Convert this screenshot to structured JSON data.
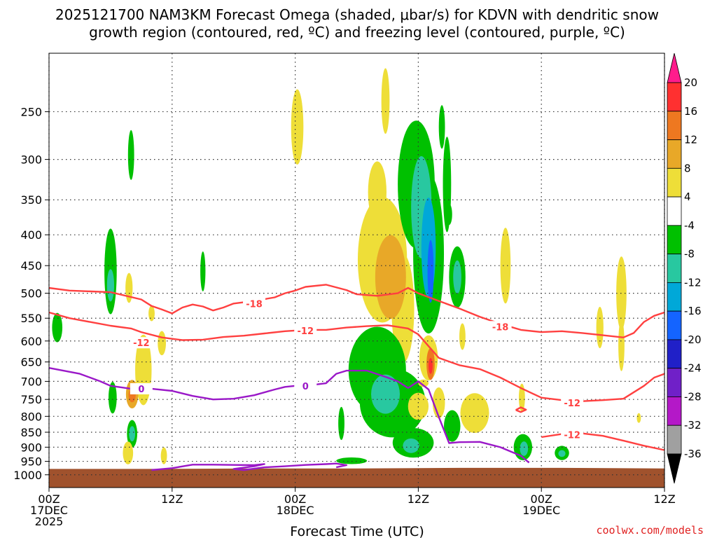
{
  "chart_data": {
    "type": "time-height cross section",
    "title_line1": "2025121700 NAM3KM Forecast Omega (shaded, μbar/s) for KDVN with dendritic snow",
    "title_line2": "growth region (contoured, red, ºC) and freezing level (contoured, purple, ºC)",
    "xlabel": "Forecast Time (UTC)",
    "ylabel": "",
    "credit": "coolwx.com/models",
    "xlim_hours": [
      0,
      60
    ],
    "ylim_hpa": [
      1050,
      200
    ],
    "x_ticks": [
      {
        "hour": 0,
        "line1": "00Z",
        "line2": "17DEC",
        "line3": "2025"
      },
      {
        "hour": 12,
        "line1": "12Z",
        "line2": "",
        "line3": ""
      },
      {
        "hour": 24,
        "line1": "00Z",
        "line2": "18DEC",
        "line3": ""
      },
      {
        "hour": 36,
        "line1": "12Z",
        "line2": "",
        "line3": ""
      },
      {
        "hour": 48,
        "line1": "00Z",
        "line2": "19DEC",
        "line3": ""
      },
      {
        "hour": 60,
        "line1": "12Z",
        "line2": "",
        "line3": ""
      }
    ],
    "y_ticks": [
      250,
      300,
      350,
      400,
      450,
      500,
      550,
      600,
      650,
      700,
      750,
      800,
      850,
      900,
      950,
      1000
    ],
    "colorbar": {
      "labels": [
        "20",
        "16",
        "12",
        "8",
        "4",
        "-4",
        "-8",
        "-12",
        "-16",
        "-20",
        "-24",
        "-28",
        "-32",
        "-36"
      ],
      "colors": [
        "#ff1c8c",
        "#ff3030",
        "#ee7820",
        "#e8a828",
        "#eede38",
        "#ffffff",
        "#00c000",
        "#28c8a0",
        "#00a8d8",
        "#1464ff",
        "#2020c8",
        "#7020c8",
        "#b418c8",
        "#a0a0a0",
        "#000000"
      ]
    },
    "surface": {
      "color": "#a0522d",
      "pressure_hpa": [
        978,
        978,
        976,
        976,
        974,
        974,
        976
      ]
    },
    "contours": [
      {
        "name": "dgz-minus18",
        "label": "-18",
        "color": "#ff4040",
        "points": [
          [
            0,
            490
          ],
          [
            2,
            495
          ],
          [
            6,
            498
          ],
          [
            9,
            512
          ],
          [
            10,
            525
          ],
          [
            11,
            532
          ],
          [
            12,
            540
          ],
          [
            13,
            528
          ],
          [
            14,
            522
          ],
          [
            15,
            526
          ],
          [
            16,
            534
          ],
          [
            17,
            528
          ],
          [
            18,
            520
          ],
          [
            20,
            515
          ],
          [
            22,
            508
          ],
          [
            23,
            500
          ],
          [
            24,
            495
          ],
          [
            25,
            488
          ],
          [
            27,
            484
          ],
          [
            29,
            494
          ],
          [
            30,
            502
          ],
          [
            32,
            505
          ],
          [
            34,
            500
          ],
          [
            35,
            490
          ],
          [
            36,
            500
          ],
          [
            38,
            515
          ],
          [
            40,
            530
          ],
          [
            42,
            547
          ],
          [
            44,
            562
          ],
          [
            46,
            575
          ],
          [
            48,
            580
          ],
          [
            50,
            578
          ],
          [
            52,
            582
          ],
          [
            54,
            587
          ],
          [
            56,
            592
          ],
          [
            57,
            582
          ],
          [
            58,
            558
          ],
          [
            59,
            545
          ],
          [
            60,
            538
          ]
        ],
        "label_at": [
          [
            20,
            520
          ],
          [
            44,
            568
          ]
        ]
      },
      {
        "name": "dgz-minus12",
        "label": "-12",
        "color": "#ff4040",
        "points": [
          [
            0,
            538
          ],
          [
            2,
            550
          ],
          [
            4,
            558
          ],
          [
            6,
            566
          ],
          [
            8,
            572
          ],
          [
            9,
            580
          ],
          [
            11,
            592
          ],
          [
            13,
            598
          ],
          [
            15,
            597
          ],
          [
            17,
            591
          ],
          [
            19,
            588
          ],
          [
            21,
            583
          ],
          [
            23,
            578
          ],
          [
            25,
            575
          ],
          [
            27,
            575
          ],
          [
            29,
            570
          ],
          [
            31,
            567
          ],
          [
            33,
            565
          ],
          [
            35,
            572
          ],
          [
            36,
            585
          ],
          [
            37,
            612
          ],
          [
            38,
            640
          ],
          [
            40,
            658
          ],
          [
            42,
            668
          ],
          [
            44,
            690
          ],
          [
            46,
            718
          ],
          [
            48,
            745
          ],
          [
            50,
            752
          ],
          [
            52,
            755
          ],
          [
            54,
            752
          ],
          [
            56,
            748
          ],
          [
            58,
            712
          ],
          [
            59,
            690
          ],
          [
            60,
            680
          ]
        ],
        "label_at": [
          [
            9,
            604
          ],
          [
            25,
            577
          ],
          [
            51,
            760
          ]
        ]
      },
      {
        "name": "dgz-minus12-lower",
        "label": "-12",
        "color": "#ff4040",
        "points": [
          [
            48,
            866
          ],
          [
            50,
            856
          ],
          [
            52,
            854
          ],
          [
            54,
            862
          ],
          [
            56,
            878
          ],
          [
            58,
            895
          ],
          [
            60,
            910
          ]
        ],
        "label_at": [
          [
            51,
            858
          ]
        ]
      },
      {
        "name": "dgz-small",
        "label": "",
        "color": "#ff4040",
        "points": [
          [
            45.5,
            781
          ],
          [
            46,
            773
          ],
          [
            46.5,
            780
          ],
          [
            46,
            787
          ],
          [
            45.5,
            781
          ]
        ],
        "label_at": []
      },
      {
        "name": "freezing-level",
        "label": "0",
        "color": "#9a18c8",
        "points": [
          [
            0,
            665
          ],
          [
            3,
            680
          ],
          [
            5,
            700
          ],
          [
            6,
            712
          ],
          [
            8,
            720
          ],
          [
            9,
            722
          ],
          [
            10,
            720
          ],
          [
            12,
            726
          ],
          [
            14,
            740
          ],
          [
            16,
            750
          ],
          [
            18,
            748
          ],
          [
            20,
            738
          ],
          [
            22,
            722
          ],
          [
            23,
            715
          ],
          [
            24,
            712
          ],
          [
            25,
            712
          ],
          [
            27,
            705
          ],
          [
            28,
            680
          ],
          [
            29,
            672
          ],
          [
            31,
            672
          ],
          [
            33,
            690
          ],
          [
            34,
            700
          ],
          [
            35,
            718
          ],
          [
            36,
            700
          ],
          [
            37,
            722
          ],
          [
            38,
            802
          ],
          [
            39,
            886
          ],
          [
            40,
            883
          ],
          [
            42,
            882
          ],
          [
            44,
            900
          ],
          [
            46,
            930
          ],
          [
            46.8,
            955
          ]
        ],
        "label_at": [
          [
            9,
            720
          ],
          [
            25,
            712
          ]
        ]
      },
      {
        "name": "freezing-level-low",
        "label": "",
        "color": "#9a18c8",
        "points": [
          [
            10,
            982
          ],
          [
            12,
            975
          ],
          [
            14,
            962
          ],
          [
            16,
            962
          ],
          [
            18,
            963
          ],
          [
            20,
            964
          ],
          [
            21,
            960
          ],
          [
            20,
            968
          ],
          [
            18,
            978
          ],
          [
            19,
            982
          ],
          [
            21,
            972
          ],
          [
            23,
            968
          ],
          [
            25,
            963
          ],
          [
            27,
            960
          ],
          [
            28,
            958
          ],
          [
            29,
            964
          ],
          [
            28,
            972
          ]
        ],
        "label_at": []
      }
    ],
    "shaded_regions": [
      {
        "color": "#eede38",
        "cx": 24.2,
        "cy": 265,
        "rx": 0.6,
        "ry": 38
      },
      {
        "color": "#00c000",
        "cx": 8.0,
        "cy": 295,
        "rx": 0.3,
        "ry": 28
      },
      {
        "color": "#00c000",
        "cx": 0.8,
        "cy": 570,
        "rx": 0.5,
        "ry": 32
      },
      {
        "color": "#00c000",
        "cx": 6.0,
        "cy": 460,
        "rx": 0.6,
        "ry": 75
      },
      {
        "color": "#28c8a0",
        "cx": 6.0,
        "cy": 485,
        "rx": 0.35,
        "ry": 30
      },
      {
        "color": "#eede38",
        "cx": 7.8,
        "cy": 490,
        "rx": 0.35,
        "ry": 28
      },
      {
        "color": "#00c000",
        "cx": 6.2,
        "cy": 745,
        "rx": 0.4,
        "ry": 45
      },
      {
        "color": "#eede38",
        "cx": 9.2,
        "cy": 670,
        "rx": 0.8,
        "ry": 90
      },
      {
        "color": "#e8a828",
        "cx": 8.1,
        "cy": 735,
        "rx": 0.6,
        "ry": 40
      },
      {
        "color": "#ee7820",
        "cx": 8.1,
        "cy": 738,
        "rx": 0.35,
        "ry": 20
      },
      {
        "color": "#00c000",
        "cx": 8.1,
        "cy": 855,
        "rx": 0.5,
        "ry": 45
      },
      {
        "color": "#28c8a0",
        "cx": 8.1,
        "cy": 855,
        "rx": 0.3,
        "ry": 25
      },
      {
        "color": "#eede38",
        "cx": 7.7,
        "cy": 920,
        "rx": 0.5,
        "ry": 40
      },
      {
        "color": "#eede38",
        "cx": 11.0,
        "cy": 605,
        "rx": 0.4,
        "ry": 28
      },
      {
        "color": "#eede38",
        "cx": 11.2,
        "cy": 930,
        "rx": 0.3,
        "ry": 30
      },
      {
        "color": "#eede38",
        "cx": 10.0,
        "cy": 540,
        "rx": 0.3,
        "ry": 16
      },
      {
        "color": "#00c000",
        "cx": 15.0,
        "cy": 460,
        "rx": 0.25,
        "ry": 35
      },
      {
        "color": "#eede38",
        "cx": 32.5,
        "cy": 440,
        "rx": 2.4,
        "ry": 105
      },
      {
        "color": "#eede38",
        "cx": 34.5,
        "cy": 530,
        "rx": 1.1,
        "ry": 110
      },
      {
        "color": "#e8a828",
        "cx": 33.3,
        "cy": 470,
        "rx": 1.5,
        "ry": 75
      },
      {
        "color": "#eede38",
        "cx": 32.0,
        "cy": 340,
        "rx": 0.9,
        "ry": 40
      },
      {
        "color": "#eede38",
        "cx": 32.8,
        "cy": 240,
        "rx": 0.4,
        "ry": 30
      },
      {
        "color": "#00c000",
        "cx": 32.0,
        "cy": 670,
        "rx": 2.8,
        "ry": 110
      },
      {
        "color": "#00c000",
        "cx": 33.5,
        "cy": 760,
        "rx": 3.2,
        "ry": 100
      },
      {
        "color": "#28c8a0",
        "cx": 32.8,
        "cy": 735,
        "rx": 1.4,
        "ry": 55
      },
      {
        "color": "#00c000",
        "cx": 35.5,
        "cy": 885,
        "rx": 2.0,
        "ry": 50
      },
      {
        "color": "#28c8a0",
        "cx": 35.3,
        "cy": 895,
        "rx": 0.8,
        "ry": 25
      },
      {
        "color": "#00c000",
        "cx": 28.5,
        "cy": 822,
        "rx": 0.3,
        "ry": 52
      },
      {
        "color": "#00c000",
        "cx": 29.5,
        "cy": 948,
        "rx": 1.5,
        "ry": 12
      },
      {
        "color": "#00c000",
        "cx": 35.8,
        "cy": 330,
        "rx": 1.8,
        "ry": 80
      },
      {
        "color": "#00c000",
        "cx": 37.0,
        "cy": 430,
        "rx": 1.5,
        "ry": 130
      },
      {
        "color": "#28c8a0",
        "cx": 36.3,
        "cy": 360,
        "rx": 1.0,
        "ry": 70
      },
      {
        "color": "#00a8d8",
        "cx": 37.0,
        "cy": 420,
        "rx": 0.7,
        "ry": 80
      },
      {
        "color": "#1464ff",
        "cx": 37.2,
        "cy": 460,
        "rx": 0.3,
        "ry": 55
      },
      {
        "color": "#00c000",
        "cx": 38.8,
        "cy": 330,
        "rx": 0.4,
        "ry": 60
      },
      {
        "color": "#00c000",
        "cx": 38.3,
        "cy": 265,
        "rx": 0.3,
        "ry": 22
      },
      {
        "color": "#00c000",
        "cx": 39.8,
        "cy": 470,
        "rx": 0.8,
        "ry": 55
      },
      {
        "color": "#28c8a0",
        "cx": 39.8,
        "cy": 470,
        "rx": 0.4,
        "ry": 30
      },
      {
        "color": "#00c000",
        "cx": 39.0,
        "cy": 370,
        "rx": 0.3,
        "ry": 15
      },
      {
        "color": "#eede38",
        "cx": 37.0,
        "cy": 640,
        "rx": 0.9,
        "ry": 55
      },
      {
        "color": "#ee7820",
        "cx": 37.2,
        "cy": 655,
        "rx": 0.4,
        "ry": 40
      },
      {
        "color": "#ff3030",
        "cx": 37.2,
        "cy": 660,
        "rx": 0.2,
        "ry": 20
      },
      {
        "color": "#eede38",
        "cx": 36.0,
        "cy": 770,
        "rx": 1.0,
        "ry": 40
      },
      {
        "color": "#eede38",
        "cx": 38.0,
        "cy": 760,
        "rx": 0.6,
        "ry": 45
      },
      {
        "color": "#eede38",
        "cx": 41.5,
        "cy": 790,
        "rx": 1.4,
        "ry": 60
      },
      {
        "color": "#00c000",
        "cx": 39.3,
        "cy": 830,
        "rx": 0.8,
        "ry": 50
      },
      {
        "color": "#eede38",
        "cx": 36.5,
        "cy": 705,
        "rx": 0.5,
        "ry": 10
      },
      {
        "color": "#eede38",
        "cx": 40.3,
        "cy": 590,
        "rx": 0.3,
        "ry": 30
      },
      {
        "color": "#eede38",
        "cx": 44.5,
        "cy": 450,
        "rx": 0.5,
        "ry": 65
      },
      {
        "color": "#eede38",
        "cx": 46.1,
        "cy": 745,
        "rx": 0.3,
        "ry": 40
      },
      {
        "color": "#00c000",
        "cx": 46.2,
        "cy": 900,
        "rx": 0.9,
        "ry": 45
      },
      {
        "color": "#28c8a0",
        "cx": 46.3,
        "cy": 905,
        "rx": 0.4,
        "ry": 25
      },
      {
        "color": "#00c000",
        "cx": 50.0,
        "cy": 920,
        "rx": 0.7,
        "ry": 25
      },
      {
        "color": "#28c8a0",
        "cx": 50.0,
        "cy": 922,
        "rx": 0.35,
        "ry": 12
      },
      {
        "color": "#eede38",
        "cx": 53.7,
        "cy": 570,
        "rx": 0.35,
        "ry": 45
      },
      {
        "color": "#eede38",
        "cx": 55.8,
        "cy": 500,
        "rx": 0.5,
        "ry": 70
      },
      {
        "color": "#eede38",
        "cx": 55.8,
        "cy": 610,
        "rx": 0.3,
        "ry": 60
      },
      {
        "color": "#eede38",
        "cx": 57.5,
        "cy": 805,
        "rx": 0.2,
        "ry": 15
      }
    ]
  }
}
